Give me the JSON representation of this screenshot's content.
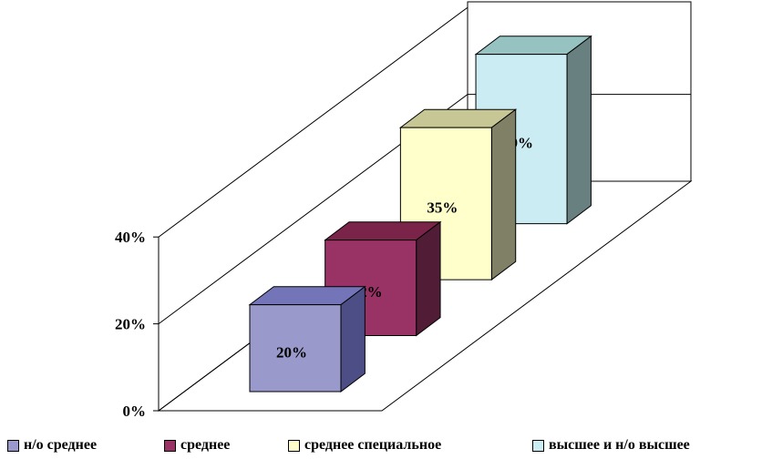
{
  "chart_data": {
    "type": "bar",
    "categories": [
      "н/о среднее",
      "среднее",
      "среднее специальное",
      "высшее и н/о высшее"
    ],
    "values": [
      20,
      22,
      35,
      39
    ],
    "data_labels": [
      "20%",
      "22%",
      "35%",
      "39%"
    ],
    "y_ticks": [
      "0%",
      "20%",
      "40%"
    ],
    "ylim": [
      0,
      40
    ],
    "title": "",
    "xlabel": "",
    "ylabel": "",
    "grid": true,
    "legend_position": "bottom",
    "colors": [
      {
        "front": "#9999cc",
        "top": "#7474b8",
        "side": "#4e4e86"
      },
      {
        "front": "#993366",
        "top": "#7a2449",
        "side": "#501c36"
      },
      {
        "front": "#ffffcc",
        "top": "#c7c796",
        "side": "#808066"
      },
      {
        "front": "#ccecf4",
        "top": "#96c2c2",
        "side": "#688080"
      }
    ]
  }
}
